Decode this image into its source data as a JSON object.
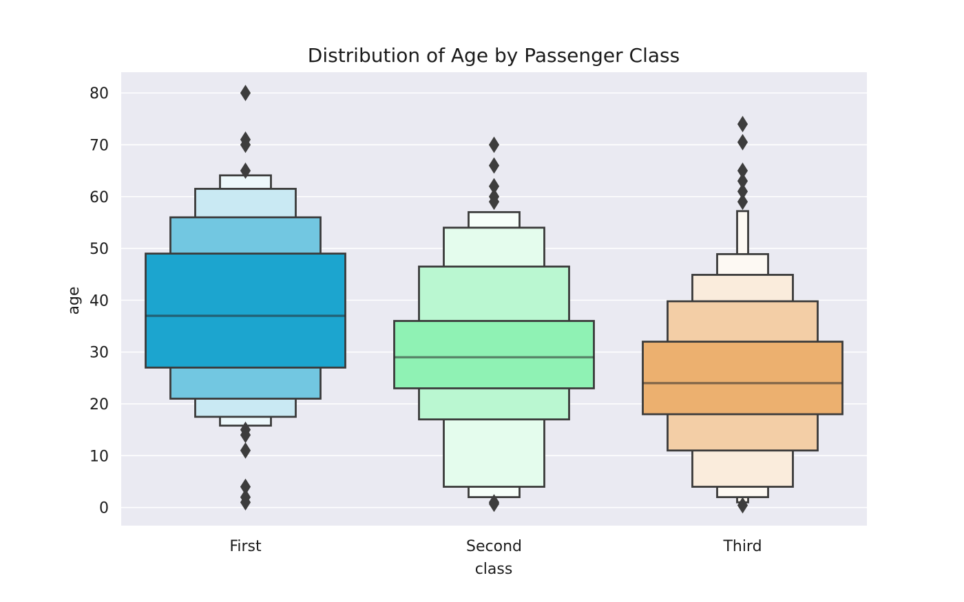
{
  "chart_data": {
    "type": "boxen",
    "title": "Distribution of Age by Passenger Class",
    "xlabel": "class",
    "ylabel": "age",
    "ylim": [
      -3.5,
      84
    ],
    "yticks": [
      0,
      10,
      20,
      30,
      40,
      50,
      60,
      70,
      80
    ],
    "categories": [
      "First",
      "Second",
      "Third"
    ],
    "grid": true,
    "series": [
      {
        "category": "First",
        "color": "#1ca5cf",
        "median": 37,
        "boxes": [
          [
            27,
            49
          ],
          [
            21,
            56
          ],
          [
            17.5,
            61.5
          ],
          [
            15.8,
            64.1
          ]
        ],
        "outliers": [
          80,
          71,
          70,
          65,
          15,
          14,
          11,
          4,
          2,
          1
        ]
      },
      {
        "category": "Second",
        "color": "#8ff2b4",
        "median": 29,
        "boxes": [
          [
            23,
            36
          ],
          [
            17,
            46.5
          ],
          [
            4,
            54
          ],
          [
            2,
            57
          ]
        ],
        "outliers": [
          70,
          66,
          62,
          60,
          59,
          1,
          0.7
        ]
      },
      {
        "category": "Third",
        "color": "#ecb06f",
        "median": 24,
        "boxes": [
          [
            18,
            32
          ],
          [
            11,
            39.8
          ],
          [
            4,
            44.9
          ],
          [
            2,
            48.9
          ],
          [
            1,
            57.2
          ]
        ],
        "outliers": [
          74,
          70.5,
          65,
          63,
          61,
          59,
          0.42
        ]
      }
    ]
  }
}
